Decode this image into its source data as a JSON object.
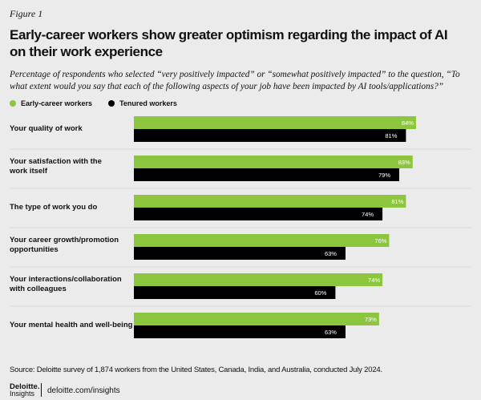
{
  "figure_label": "Figure 1",
  "chart_data": {
    "type": "bar",
    "orientation": "horizontal",
    "title": "Early-career workers show greater optimism regarding the impact of AI on their work experience",
    "subtitle": "Percentage of respondents who selected “very positively impacted” or “somewhat positively impacted” to the question, “To what extent would you say that each of the following aspects of your job have been impacted by AI tools/applications?”",
    "categories": [
      [
        "Your quality of work"
      ],
      [
        "Your satisfaction with the",
        "work itself"
      ],
      [
        "The type of work you do"
      ],
      [
        "Your career growth/promotion",
        "opportunities"
      ],
      [
        "Your interactions/collaboration",
        "with colleagues"
      ],
      [
        "Your mental health and well-being"
      ]
    ],
    "series": [
      {
        "name": "Early-career workers",
        "color": "#8cc63f",
        "values": [
          84,
          83,
          81,
          76,
          74,
          73
        ]
      },
      {
        "name": "Tenured workers",
        "color": "#000000",
        "values": [
          81,
          79,
          74,
          63,
          60,
          63
        ]
      }
    ],
    "value_suffix": "%",
    "xlim": [
      0,
      100
    ],
    "grid": false,
    "legend": "top-left"
  },
  "source": "Source: Deloitte survey of 1,874 workers from the United States, Canada, India, and Australia, conducted July 2024.",
  "logo": {
    "name": "Deloitte.",
    "sub": "Insights"
  },
  "url": "deloitte.com/insights"
}
